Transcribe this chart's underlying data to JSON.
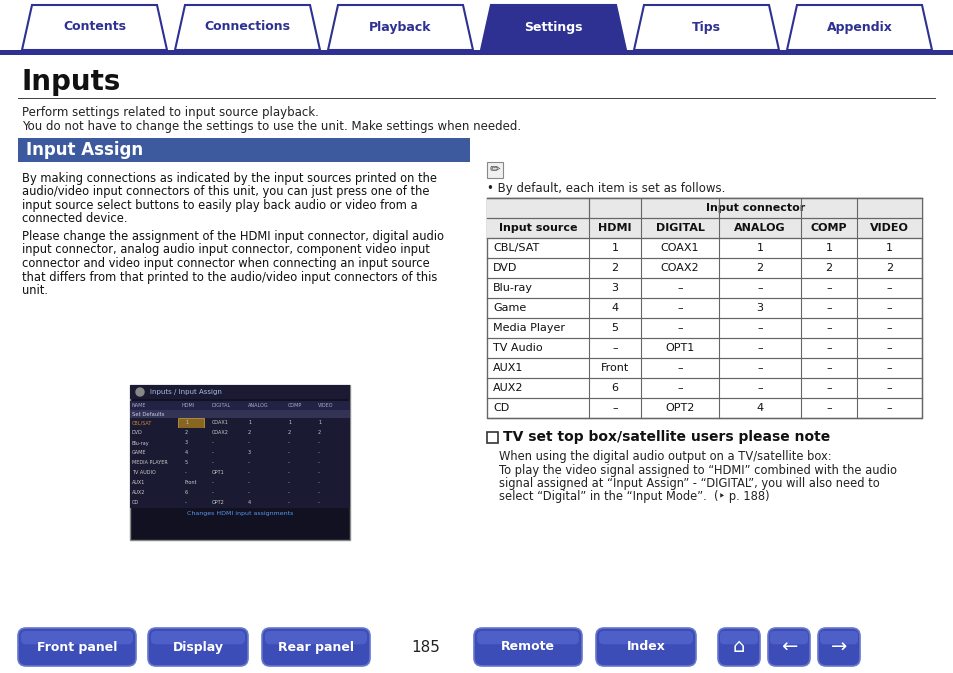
{
  "title": "Inputs",
  "subtitle1": "Perform settings related to input source playback.",
  "subtitle2": "You do not have to change the settings to use the unit. Make settings when needed.",
  "section_title": "Input Assign",
  "section_color": "#3d5a9e",
  "body_text_para1": [
    "By making connections as indicated by the input sources printed on the",
    "audio/video input connectors of this unit, you can just press one of the",
    "input source select buttons to easily play back audio or video from a",
    "connected device."
  ],
  "body_text_para2": [
    "Please change the assignment of the HDMI input connector, digital audio",
    "input connector, analog audio input connector, component video input",
    "connector and video input connector when connecting an input source",
    "that differs from that printed to the audio/video input connectors of this",
    "unit."
  ],
  "note_text": "By default, each item is set as follows.",
  "table_header1": "Input source",
  "table_header2": "Input connector",
  "col_headers": [
    "HDMI",
    "DIGITAL",
    "ANALOG",
    "COMP",
    "VIDEO"
  ],
  "table_rows": [
    [
      "CBL/SAT",
      "1",
      "COAX1",
      "1",
      "1",
      "1"
    ],
    [
      "DVD",
      "2",
      "COAX2",
      "2",
      "2",
      "2"
    ],
    [
      "Blu-ray",
      "3",
      "–",
      "–",
      "–",
      "–"
    ],
    [
      "Game",
      "4",
      "–",
      "3",
      "–",
      "–"
    ],
    [
      "Media Player",
      "5",
      "–",
      "–",
      "–",
      "–"
    ],
    [
      "TV Audio",
      "–",
      "OPT1",
      "–",
      "–",
      "–"
    ],
    [
      "AUX1",
      "Front",
      "–",
      "–",
      "–",
      "–"
    ],
    [
      "AUX2",
      "6",
      "–",
      "–",
      "–",
      "–"
    ],
    [
      "CD",
      "–",
      "OPT2",
      "4",
      "–",
      "–"
    ]
  ],
  "tv_note_title": "TV set top box/satellite users please note",
  "tv_note_text1": "When using the digital audio output on a TV/satellite box:",
  "tv_note_text2": "To play the video signal assigned to “HDMI” combined with the audio signal assigned at “Input Assign” - “DIGITAL”, you will also need to select “Digital” in the “Input Mode”.  (‣ p. 188)",
  "nav_tabs": [
    "Contents",
    "Connections",
    "Playback",
    "Settings",
    "Tips",
    "Appendix"
  ],
  "active_tab": "Settings",
  "bottom_buttons": [
    "Front panel",
    "Display",
    "Rear panel",
    "Remote",
    "Index"
  ],
  "page_number": "185",
  "bg_color": "#ffffff",
  "tab_active_color": "#2e3192",
  "tab_inactive_color": "#ffffff",
  "tab_border_color": "#2e3192",
  "tab_active_text": "#ffffff",
  "tab_inactive_text": "#2e3192",
  "button_color": "#3d4db7",
  "divider_color": "#333333",
  "table_header_bg": "#e0e0e0",
  "table_border_color": "#666666",
  "screen_bg": "#0d0d1a",
  "screen_header_color": "#8899ff",
  "screen_row_active": "#cc8833",
  "screen_row_normal": "#cccccc",
  "screen_footer_color": "#5599ee"
}
